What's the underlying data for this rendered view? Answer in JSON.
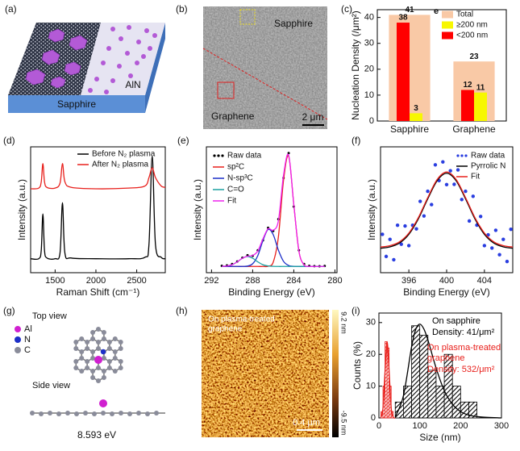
{
  "panel_labels": [
    "(a)",
    "(b)",
    "(c)",
    "(d)",
    "(e)",
    "(f)",
    "(g)",
    "(h)",
    "(i)"
  ],
  "panel_a": {
    "substrate": "Sapphire",
    "film": "AlN"
  },
  "panel_b": {
    "region_top": "Sapphire",
    "region_bottom": "Graphene",
    "scale_bar": "2 μm"
  },
  "panel_g": {
    "top_title": "Top view",
    "legend": [
      "Al",
      "N",
      "C"
    ],
    "side_title": "Side view",
    "energy": "8.593 eV"
  },
  "panel_h": {
    "caption": [
      "On plasma-treated",
      "graphene"
    ],
    "color_max": "9.2 nm",
    "color_min": "-9.5 nm",
    "scale_bar": "0.4 μm"
  },
  "chart_data": [
    {
      "type": "bar",
      "annotation": "e",
      "ylabel": "Nucleation Density (/μm²)",
      "categories": [
        "Sapphire",
        "Graphene"
      ],
      "series": [
        {
          "name": "Total",
          "color": "#f9c9a6",
          "values": [
            41,
            23
          ]
        },
        {
          "name": "≥200 nm",
          "color": "#f7f700",
          "values": [
            3,
            11
          ]
        },
        {
          "name": "<200 nm",
          "color": "#ff0000",
          "values": [
            38,
            12
          ]
        }
      ],
      "ylim": [
        0,
        43
      ],
      "yticks": [
        0,
        10,
        20,
        30,
        40
      ]
    },
    {
      "type": "line",
      "xlabel": "Raman Shift (cm⁻¹)",
      "ylabel": "Intensity (a.u.)",
      "x": [
        1200,
        1300,
        1330,
        1350,
        1370,
        1400,
        1500,
        1560,
        1590,
        1620,
        1700,
        2000,
        2400,
        2600,
        2650,
        2690,
        2730,
        2800,
        2850
      ],
      "series": [
        {
          "name": "Before N₂ plasma",
          "color": "#000000",
          "mode": "lines",
          "values": [
            1,
            1,
            1.6,
            4.2,
            1.6,
            1.05,
            1,
            1.4,
            5,
            1.4,
            1.05,
            1,
            1,
            1.1,
            2,
            8.3,
            2,
            1.1,
            1
          ]
        },
        {
          "name": "After N₂ plasma",
          "color": "#e8201c",
          "mode": "lines",
          "values": [
            6,
            6.05,
            6.5,
            7.8,
            6.5,
            6.1,
            6.05,
            6.4,
            7.8,
            6.5,
            6.1,
            6,
            6.05,
            6.2,
            6.8,
            7.5,
            6.8,
            6.2,
            6.1
          ]
        }
      ],
      "xlim": [
        1200,
        2850
      ],
      "xticks": [
        1500,
        2000,
        2500
      ],
      "ylim": [
        0,
        9
      ]
    },
    {
      "type": "line",
      "xlabel": "Binding Energy (eV)",
      "ylabel": "Intensity (a.u.)",
      "x": [
        291,
        290.5,
        290,
        289.5,
        289,
        288.5,
        288,
        287.5,
        287,
        286.5,
        286,
        285.5,
        285,
        284.5,
        284,
        283.5,
        283,
        282.5,
        282,
        281.5,
        281
      ],
      "series": [
        {
          "name": "Raw data",
          "color": "#000000",
          "mode": "markers",
          "values": [
            0.05,
            0.08,
            0.2,
            0.4,
            0.7,
            0.9,
            0.85,
            1.3,
            2.1,
            3.1,
            2.85,
            3.8,
            7.1,
            9.1,
            4.8,
            1.3,
            0.2,
            0.05,
            0.03,
            0.02,
            0.04
          ]
        },
        {
          "name": "sp²C",
          "color": "#e8201c",
          "mode": "lines",
          "values": [
            0,
            0,
            0,
            0,
            0,
            0,
            0,
            0,
            0,
            0.02,
            0.35,
            2.36,
            6.91,
            8.85,
            4.96,
            1.22,
            0.13,
            0.01,
            0,
            0,
            0
          ]
        },
        {
          "name": "N-sp³C",
          "color": "#1c2fc8",
          "mode": "lines",
          "values": [
            0,
            0,
            0,
            0,
            0,
            0.03,
            0.22,
            0.87,
            2.08,
            2.97,
            2.55,
            1.31,
            0.41,
            0.08,
            0.01,
            0,
            0,
            0,
            0,
            0,
            0
          ]
        },
        {
          "name": "C=O",
          "color": "#1aa0a0",
          "mode": "lines",
          "values": [
            0.01,
            0.04,
            0.14,
            0.37,
            0.66,
            0.8,
            0.66,
            0.37,
            0.14,
            0.04,
            0.01,
            0,
            0,
            0,
            0,
            0,
            0,
            0,
            0,
            0,
            0
          ]
        },
        {
          "name": "Fit",
          "color": "#ee22ee",
          "mode": "lines",
          "values": [
            0.01,
            0.04,
            0.14,
            0.37,
            0.66,
            0.83,
            0.88,
            1.24,
            2.22,
            3.03,
            2.91,
            3.67,
            7.32,
            8.93,
            4.97,
            1.22,
            0.13,
            0.01,
            0,
            0,
            0
          ]
        }
      ],
      "xlim": [
        292.5,
        279.8
      ],
      "xticks": [
        292,
        288,
        284,
        280
      ],
      "ylim": [
        -0.5,
        9.6
      ]
    },
    {
      "type": "scatter",
      "xlabel": "Binding Energy (eV)",
      "ylabel": "Intensity (a.u.)",
      "series": [
        {
          "name": "Raw data",
          "color": "#2a3ee0",
          "mode": "markers",
          "x": [
            393.2,
            393.6,
            394,
            394.4,
            394.8,
            395.2,
            395.6,
            396,
            396.4,
            396.8,
            397.2,
            397.6,
            398,
            398.4,
            398.8,
            399.2,
            399.6,
            400,
            400.4,
            400.8,
            401.2,
            401.6,
            402,
            402.4,
            402.8,
            403.2,
            403.6,
            404,
            404.4,
            404.8,
            405.2,
            405.6,
            406,
            406.4,
            406.8
          ],
          "values": [
            3.05,
            1.29,
            2.65,
            1.03,
            3.77,
            2.26,
            3.71,
            2.15,
            3.77,
            3.48,
            5.67,
            4.51,
            6.47,
            5.41,
            8.57,
            7.32,
            8.8,
            7,
            8.1,
            7.02,
            8.17,
            5.81,
            6.47,
            4.11,
            6.07,
            3.78,
            4.47,
            2.15,
            3.01,
            1.96,
            3.37,
            1.43,
            2.65,
            0.89,
            3.45
          ]
        },
        {
          "name": "Pyrrolic N",
          "color": "#000000",
          "mode": "lines",
          "x": [
            393,
            394,
            395,
            396,
            397,
            398,
            399,
            400,
            401,
            402,
            403,
            404,
            405,
            406,
            407
          ],
          "values": [
            1.94,
            2.05,
            2.35,
            3.05,
            4.27,
            5.87,
            7.31,
            7.9,
            7.31,
            5.87,
            4.27,
            3.05,
            2.35,
            2.05,
            1.94
          ]
        },
        {
          "name": "Fit",
          "color": "#e8201c",
          "mode": "lines",
          "x": [
            393,
            394,
            395,
            396,
            397,
            398,
            399,
            400,
            401,
            402,
            403,
            404,
            405,
            406,
            407
          ],
          "values": [
            2.04,
            2.15,
            2.45,
            3.15,
            4.37,
            5.97,
            7.41,
            8,
            7.41,
            5.97,
            4.37,
            3.15,
            2.45,
            2.15,
            2.04
          ]
        }
      ],
      "xlim": [
        393,
        407
      ],
      "xticks": [
        396,
        400,
        404
      ],
      "ylim": [
        0,
        10
      ]
    },
    {
      "type": "histogram",
      "xlabel": "Size (nm)",
      "ylabel": "Counts (%)",
      "annotations": [
        {
          "text": "On sapphire",
          "color": "#000000"
        },
        {
          "text": "Density: 41/μm²",
          "color": "#000000"
        },
        {
          "text": "On plasma-treated",
          "color": "#e8201c"
        },
        {
          "text": "graphene",
          "color": "#e8201c"
        },
        {
          "text": "Density: 532/μm²",
          "color": "#e8201c"
        }
      ],
      "series": [
        {
          "color": "#000000",
          "bins": [
            40,
            60,
            80,
            100,
            120,
            140,
            160,
            180,
            200,
            220,
            240
          ],
          "values": [
            5,
            10,
            29,
            26,
            15,
            10,
            20,
            10,
            5,
            5
          ]
        },
        {
          "color": "#e8201c",
          "bins": [
            5,
            10,
            15,
            20,
            25,
            30,
            35
          ],
          "values": [
            2,
            10,
            24,
            22,
            10,
            2
          ]
        }
      ],
      "fits": [
        {
          "color": "#000000",
          "x": [
            40,
            60,
            80,
            90,
            100,
            110,
            120,
            140,
            160,
            180,
            200,
            220,
            250,
            300
          ],
          "values": [
            0.3,
            7,
            22.4,
            27.8,
            29.5,
            28,
            24.5,
            15.7,
            8.6,
            4.3,
            2,
            0.9,
            0.3,
            0
          ]
        },
        {
          "color": "#e8201c",
          "x": [
            5,
            10,
            15,
            20,
            25,
            30,
            35,
            40
          ],
          "values": [
            0.27,
            3.2,
            14.6,
            24,
            14.6,
            3.2,
            0.27,
            0
          ]
        }
      ],
      "xlim": [
        0,
        300
      ],
      "xticks": [
        0,
        100,
        200,
        300
      ],
      "ylim": [
        0,
        33
      ],
      "yticks": [
        0,
        10,
        20,
        30
      ]
    }
  ]
}
